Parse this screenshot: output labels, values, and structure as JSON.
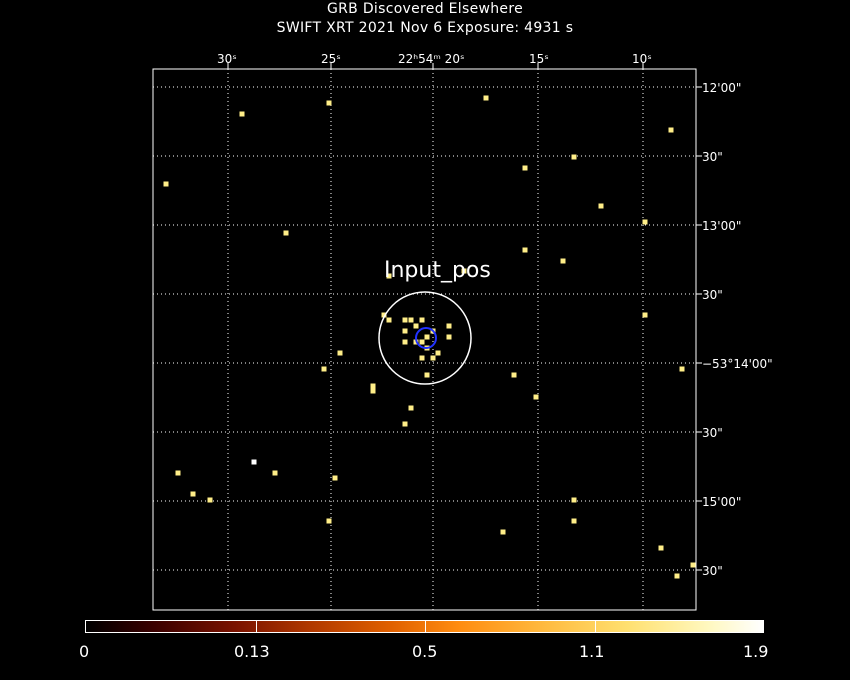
{
  "header": {
    "title": "GRB Discovered Elsewhere",
    "subtitle": "SWIFT XRT   2021 Nov  6    Exposure: 4931 s"
  },
  "ra_labels": [
    {
      "text": "30ˢ"
    },
    {
      "text": "25ˢ"
    },
    {
      "text": "22ʰ54ᵐ 20ˢ"
    },
    {
      "text": "15ˢ"
    },
    {
      "text": "10ˢ"
    }
  ],
  "dec_labels": [
    {
      "text": "12'00\""
    },
    {
      "text": "30\""
    },
    {
      "text": "13'00\""
    },
    {
      "text": "30\""
    },
    {
      "text": "−53°14'00\""
    },
    {
      "text": "30\""
    },
    {
      "text": "15'00\""
    },
    {
      "text": "30\""
    }
  ],
  "region_label": "Input_pos",
  "colorbar": {
    "labels": [
      "0",
      "0.13",
      "0.5",
      "1.1",
      "1.9"
    ]
  },
  "colors": {
    "grid": "#ffffff",
    "source": "#ffee88",
    "source_bright": "#ffffff",
    "input_circle": "#ffffff",
    "error_circle": "#2233ff"
  },
  "sources": {
    "count_shown": 60
  }
}
